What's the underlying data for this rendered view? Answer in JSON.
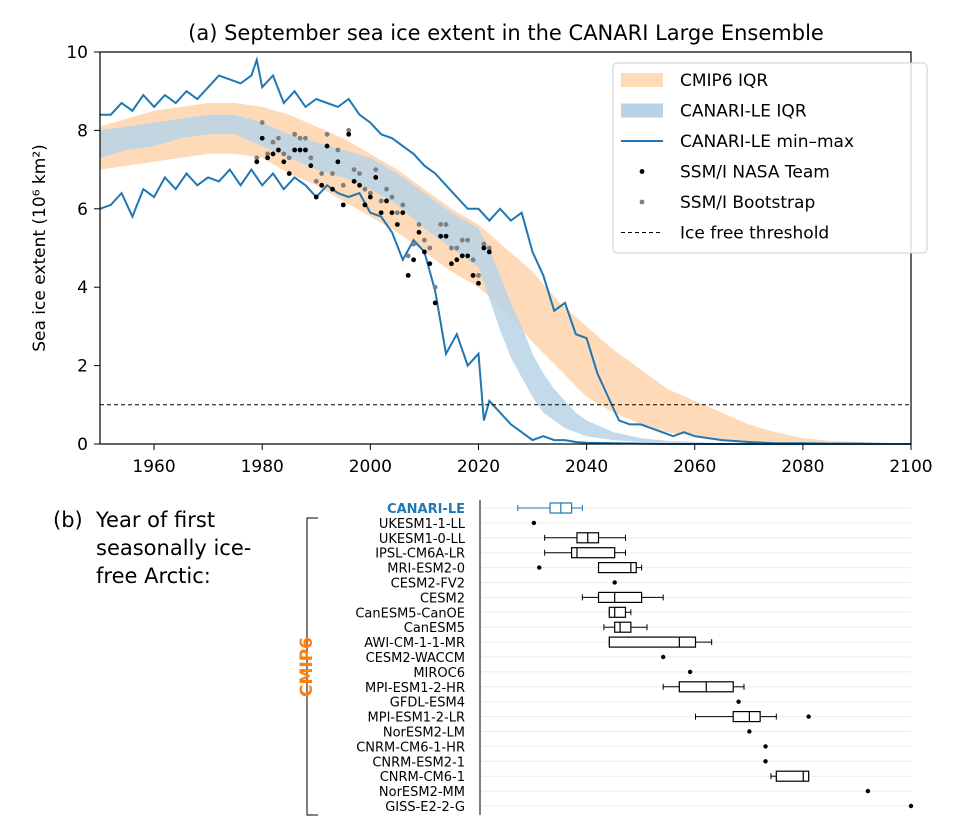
{
  "chart_data": [
    {
      "type": "line",
      "panel": "(a)",
      "title": "(a) September sea ice extent in the CANARI Large Ensemble",
      "xlabel": "",
      "ylabel": "Sea ice extent (10⁶ km²)",
      "xlim": [
        1950,
        2100
      ],
      "ylim": [
        0,
        10
      ],
      "xticks": [
        1960,
        1980,
        2000,
        2020,
        2040,
        2060,
        2080,
        2100
      ],
      "yticks": [
        0,
        2,
        4,
        6,
        8,
        10
      ],
      "legend_position": "top-right",
      "grid": false,
      "colors": {
        "cmip6_iqr": "#ffdab9",
        "canari_iqr": "#b8d3e8",
        "canari_line": "#1f77b4",
        "nasa_team": "#000000",
        "bootstrap": "#7f7f7f"
      },
      "legend": [
        {
          "key": "cmip6_iqr",
          "label": "CMIP6 IQR"
        },
        {
          "key": "canari_iqr",
          "label": "CANARI-LE IQR"
        },
        {
          "key": "canari_minmax",
          "label": "CANARI-LE min–max"
        },
        {
          "key": "nasa_team",
          "label": "SSM/I NASA Team"
        },
        {
          "key": "bootstrap",
          "label": "SSM/I Bootstrap"
        },
        {
          "key": "threshold",
          "label": "Ice free threshold"
        }
      ],
      "threshold": 1,
      "cmip6_iqr": {
        "x": [
          1950,
          1955,
          1960,
          1965,
          1970,
          1975,
          1980,
          1985,
          1990,
          1995,
          2000,
          2005,
          2010,
          2015,
          2020,
          2025,
          2030,
          2035,
          2040,
          2045,
          2050,
          2055,
          2060,
          2065,
          2070,
          2075,
          2080,
          2085,
          2090,
          2095,
          2100
        ],
        "low": [
          7.0,
          7.1,
          7.2,
          7.3,
          7.4,
          7.4,
          7.3,
          6.9,
          6.6,
          6.2,
          5.8,
          5.4,
          4.9,
          4.4,
          4.0,
          3.4,
          2.6,
          1.9,
          1.2,
          0.8,
          0.5,
          0.3,
          0.2,
          0.1,
          0.05,
          0.03,
          0.02,
          0.01,
          0.0,
          0.0,
          0.0
        ],
        "high": [
          8.1,
          8.3,
          8.5,
          8.6,
          8.7,
          8.7,
          8.6,
          8.4,
          8.1,
          7.8,
          7.4,
          7.0,
          6.5,
          6.0,
          5.6,
          5.0,
          4.4,
          3.6,
          3.0,
          2.4,
          1.9,
          1.4,
          1.1,
          0.8,
          0.5,
          0.3,
          0.15,
          0.08,
          0.05,
          0.03,
          0.02
        ]
      },
      "canari_iqr": {
        "x": [
          1950,
          1955,
          1960,
          1965,
          1970,
          1975,
          1980,
          1985,
          1990,
          1995,
          2000,
          2005,
          2010,
          2015,
          2020,
          2022,
          2024,
          2026,
          2028,
          2030,
          2032,
          2034,
          2036,
          2038,
          2040,
          2045,
          2050,
          2055,
          2060,
          2065,
          2070
        ],
        "low": [
          7.3,
          7.5,
          7.6,
          7.8,
          7.9,
          7.9,
          7.6,
          7.3,
          7.0,
          6.8,
          6.5,
          6.1,
          5.5,
          5.0,
          4.5,
          3.7,
          2.9,
          2.2,
          1.7,
          1.2,
          0.8,
          0.6,
          0.4,
          0.3,
          0.2,
          0.1,
          0.05,
          0.03,
          0.02,
          0.01,
          0.0
        ],
        "high": [
          8.0,
          8.1,
          8.2,
          8.3,
          8.4,
          8.4,
          8.2,
          7.9,
          7.7,
          7.5,
          7.3,
          6.9,
          6.4,
          5.9,
          5.5,
          5.0,
          4.3,
          3.6,
          3.0,
          2.3,
          1.8,
          1.4,
          1.1,
          0.8,
          0.6,
          0.3,
          0.15,
          0.08,
          0.05,
          0.02,
          0.01
        ]
      },
      "canari_max": {
        "x": [
          1950,
          1952,
          1954,
          1956,
          1958,
          1960,
          1962,
          1964,
          1966,
          1968,
          1970,
          1972,
          1974,
          1976,
          1978,
          1979,
          1980,
          1982,
          1984,
          1986,
          1988,
          1990,
          1992,
          1994,
          1996,
          1998,
          2000,
          2002,
          2004,
          2006,
          2008,
          2010,
          2012,
          2014,
          2016,
          2018,
          2020,
          2022,
          2024,
          2026,
          2028,
          2030,
          2032,
          2034,
          2036,
          2038,
          2040,
          2042,
          2044,
          2046,
          2048,
          2050,
          2052,
          2054,
          2056,
          2058,
          2060,
          2065,
          2070,
          2075,
          2080,
          2085,
          2090,
          2095,
          2100
        ],
        "y": [
          8.4,
          8.4,
          8.7,
          8.5,
          8.9,
          8.6,
          8.9,
          8.7,
          9.0,
          8.8,
          9.1,
          9.4,
          9.3,
          9.2,
          9.4,
          9.8,
          9.1,
          9.4,
          8.7,
          9.0,
          8.6,
          8.8,
          8.7,
          8.6,
          8.8,
          8.4,
          8.2,
          7.9,
          7.8,
          7.6,
          7.4,
          7.1,
          6.9,
          6.6,
          6.3,
          6.0,
          6.0,
          5.7,
          6.0,
          5.7,
          5.9,
          4.9,
          4.3,
          3.4,
          3.6,
          2.8,
          2.7,
          1.8,
          1.2,
          0.6,
          0.5,
          0.5,
          0.4,
          0.3,
          0.2,
          0.3,
          0.2,
          0.1,
          0.05,
          0.02,
          0.02,
          0.01,
          0.01,
          0.0,
          0.0
        ]
      },
      "canari_min": {
        "x": [
          1950,
          1952,
          1954,
          1956,
          1958,
          1960,
          1962,
          1964,
          1966,
          1968,
          1970,
          1972,
          1974,
          1976,
          1978,
          1980,
          1982,
          1984,
          1986,
          1988,
          1990,
          1992,
          1994,
          1996,
          1998,
          2000,
          2002,
          2004,
          2006,
          2008,
          2010,
          2012,
          2014,
          2016,
          2018,
          2020,
          2021,
          2022,
          2024,
          2026,
          2028,
          2030,
          2032,
          2034,
          2036,
          2038,
          2040,
          2045,
          2050,
          2055,
          2060,
          2065,
          2070,
          2080,
          2090,
          2100
        ],
        "y": [
          6.0,
          6.1,
          6.4,
          5.8,
          6.5,
          6.3,
          6.8,
          6.5,
          6.9,
          6.6,
          6.8,
          6.7,
          7.0,
          6.6,
          7.0,
          6.6,
          6.9,
          6.5,
          6.8,
          6.6,
          6.3,
          6.6,
          6.4,
          6.3,
          6.4,
          5.9,
          5.8,
          5.4,
          4.7,
          5.2,
          4.9,
          3.9,
          2.3,
          2.8,
          2.0,
          2.3,
          0.6,
          1.1,
          0.8,
          0.5,
          0.3,
          0.1,
          0.2,
          0.1,
          0.1,
          0.05,
          0.03,
          0.02,
          0.01,
          0.0,
          0.0,
          0.0,
          0.0,
          0.0,
          0.0,
          0.0
        ]
      },
      "nasa_team": {
        "x": [
          1979,
          1980,
          1981,
          1982,
          1983,
          1984,
          1985,
          1986,
          1987,
          1988,
          1989,
          1990,
          1991,
          1992,
          1993,
          1994,
          1995,
          1996,
          1997,
          1998,
          1999,
          2000,
          2001,
          2002,
          2003,
          2004,
          2005,
          2006,
          2007,
          2008,
          2009,
          2010,
          2011,
          2012,
          2013,
          2014,
          2015,
          2016,
          2017,
          2018,
          2019,
          2020,
          2021,
          2022
        ],
        "y": [
          7.2,
          7.8,
          7.3,
          7.4,
          7.5,
          7.2,
          6.9,
          7.5,
          7.5,
          7.5,
          7.1,
          6.3,
          6.6,
          7.6,
          6.5,
          7.2,
          6.1,
          7.9,
          6.7,
          6.6,
          6.1,
          6.3,
          6.8,
          5.9,
          6.2,
          5.9,
          5.6,
          5.9,
          4.3,
          4.7,
          5.4,
          4.9,
          4.6,
          3.6,
          5.3,
          5.3,
          4.6,
          4.7,
          4.8,
          4.8,
          4.3,
          4.1,
          5.0,
          4.9
        ]
      },
      "ssmi_bootstrap": {
        "x": [
          1979,
          1980,
          1981,
          1982,
          1983,
          1984,
          1985,
          1986,
          1987,
          1988,
          1989,
          1990,
          1991,
          1992,
          1993,
          1994,
          1995,
          1996,
          1997,
          1998,
          1999,
          2000,
          2001,
          2002,
          2003,
          2004,
          2005,
          2006,
          2007,
          2008,
          2009,
          2010,
          2011,
          2012,
          2013,
          2014,
          2015,
          2016,
          2017,
          2018,
          2019,
          2020,
          2021,
          2022
        ],
        "y": [
          7.3,
          8.2,
          7.4,
          7.7,
          7.8,
          7.4,
          7.3,
          7.9,
          7.8,
          7.8,
          7.3,
          6.7,
          6.9,
          7.9,
          6.9,
          7.5,
          6.6,
          8.0,
          7.0,
          6.9,
          6.5,
          6.4,
          7.0,
          6.2,
          6.5,
          6.3,
          5.9,
          6.1,
          4.8,
          5.1,
          5.6,
          5.2,
          5.0,
          4.0,
          5.6,
          5.6,
          5.0,
          5.0,
          5.2,
          5.2,
          4.7,
          4.3,
          5.1,
          5.0
        ]
      }
    },
    {
      "type": "box",
      "panel": "(b)",
      "panel_letter": "(b)",
      "title": "Year of first seasonally ice-free Arctic:",
      "group_label": "CMIP6",
      "xlim": [
        2020,
        2100
      ],
      "highlight_color": "#1f77b4",
      "group_color": "#ff7f0e",
      "models": [
        {
          "name": "CANARI-LE",
          "whisker_low": 2027,
          "q1": 2033,
          "median": 2035,
          "q3": 2037,
          "whisker_high": 2039,
          "highlight": true
        },
        {
          "name": "UKESM1-1-LL",
          "point": 2030
        },
        {
          "name": "UKESM1-0-LL",
          "whisker_low": 2032,
          "q1": 2038,
          "median": 2040,
          "q3": 2042,
          "whisker_high": 2047
        },
        {
          "name": "IPSL-CM6A-LR",
          "whisker_low": 2032,
          "q1": 2037,
          "median": 2038,
          "q3": 2045,
          "whisker_high": 2047
        },
        {
          "name": "MRI-ESM2-0",
          "whisker_low": 2042,
          "q1": 2042,
          "median": 2048,
          "q3": 2049,
          "whisker_high": 2050,
          "outliers": [
            2031
          ]
        },
        {
          "name": "CESM2-FV2",
          "point": 2045
        },
        {
          "name": "CESM2",
          "whisker_low": 2039,
          "q1": 2042,
          "median": 2045,
          "q3": 2050,
          "whisker_high": 2054
        },
        {
          "name": "CanESM5-CanOE",
          "whisker_low": 2044,
          "q1": 2044,
          "median": 2045,
          "q3": 2047,
          "whisker_high": 2048
        },
        {
          "name": "CanESM5",
          "whisker_low": 2043,
          "q1": 2045,
          "median": 2046,
          "q3": 2048,
          "whisker_high": 2051
        },
        {
          "name": "AWI-CM-1-1-MR",
          "whisker_low": 2044,
          "q1": 2044,
          "median": 2057,
          "q3": 2060,
          "whisker_high": 2063
        },
        {
          "name": "CESM2-WACCM",
          "point": 2054
        },
        {
          "name": "MIROC6",
          "point": 2059
        },
        {
          "name": "MPI-ESM1-2-HR",
          "whisker_low": 2054,
          "q1": 2057,
          "median": 2062,
          "q3": 2067,
          "whisker_high": 2069
        },
        {
          "name": "GFDL-ESM4",
          "point": 2068
        },
        {
          "name": "MPI-ESM1-2-LR",
          "whisker_low": 2060,
          "q1": 2067,
          "median": 2070,
          "q3": 2072,
          "whisker_high": 2075,
          "outliers": [
            2081
          ]
        },
        {
          "name": "NorESM2-LM",
          "point": 2070
        },
        {
          "name": "CNRM-CM6-1-HR",
          "point": 2073
        },
        {
          "name": "CNRM-ESM2-1",
          "point": 2073
        },
        {
          "name": "CNRM-CM6-1",
          "whisker_low": 2074,
          "q1": 2075,
          "median": 2080,
          "q3": 2081,
          "whisker_high": 2081
        },
        {
          "name": "NorESM2-MM",
          "point": 2092
        },
        {
          "name": "GISS-E2-2-G",
          "point": 2100
        }
      ]
    }
  ]
}
